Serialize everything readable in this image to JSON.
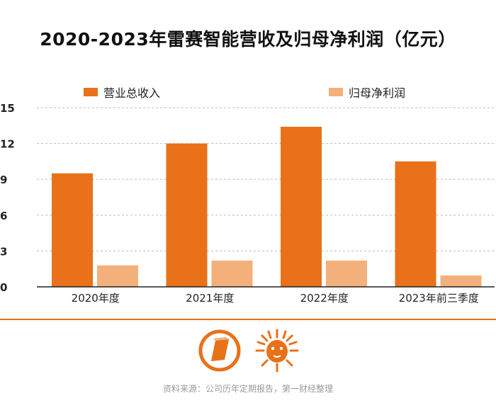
{
  "title": "2020-2023年雷赛智能营收及归母净利润（亿元）",
  "colors": {
    "revenue": "#E8711A",
    "profit": "#F4B07A",
    "axis": "#222222",
    "grid": "#bdbdbd",
    "divider": "#E8711A"
  },
  "legend": [
    {
      "label": "营业总收入",
      "color": "#E8711A"
    },
    {
      "label": "归母净利润",
      "color": "#F4B07A"
    }
  ],
  "chart_data": {
    "type": "bar",
    "title": "2020-2023年雷赛智能营收及归母净利润（亿元）",
    "categories": [
      "2020年度",
      "2021年度",
      "2022年度",
      "2023年前三季度"
    ],
    "series": [
      {
        "name": "营业总收入",
        "values": [
          9.5,
          12.0,
          13.4,
          10.5
        ]
      },
      {
        "name": "归母净利润",
        "values": [
          1.8,
          2.2,
          2.2,
          0.95
        ]
      }
    ],
    "y_ticks": [
      0,
      3,
      6,
      9,
      12,
      15
    ],
    "ylim": [
      0,
      15
    ],
    "xlabel": "",
    "ylabel": "",
    "grid": true,
    "legend_position": "top"
  },
  "logos": {
    "left_icon": "document-circle-icon",
    "right_icon": "lion-head-icon"
  },
  "source": "资料来源：公司历年定期报告，第一财经整理"
}
